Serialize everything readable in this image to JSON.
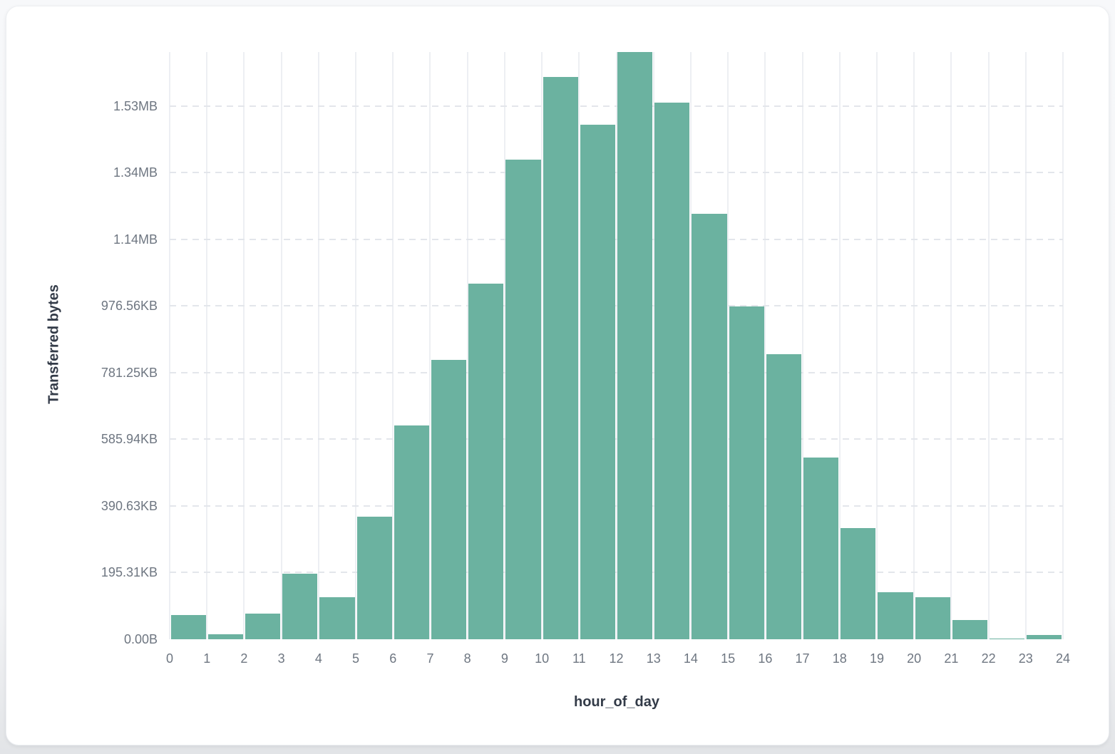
{
  "chart_data": {
    "type": "bar",
    "title": "",
    "xlabel": "hour_of_day",
    "ylabel": "Transferred bytes",
    "x_bin_start_hours": [
      0,
      1,
      2,
      3,
      4,
      5,
      6,
      7,
      8,
      9,
      10,
      11,
      12,
      13,
      14,
      15,
      16,
      17,
      18,
      19,
      20,
      21,
      22,
      23
    ],
    "values_bytes": [
      72000,
      15000,
      77000,
      196000,
      126000,
      367000,
      641000,
      838000,
      1066000,
      1440000,
      1688000,
      1543000,
      1762000,
      1611000,
      1276000,
      998000,
      855000,
      545000,
      333000,
      141000,
      126000,
      58000,
      3000,
      13000
    ],
    "x_tick_labels": [
      "0",
      "1",
      "2",
      "3",
      "4",
      "5",
      "6",
      "7",
      "8",
      "9",
      "10",
      "11",
      "12",
      "13",
      "14",
      "15",
      "16",
      "17",
      "18",
      "19",
      "20",
      "21",
      "22",
      "23",
      "24"
    ],
    "y_ticks": [
      {
        "label": "0.00B",
        "bytes": 0
      },
      {
        "label": "195.31KB",
        "bytes": 200000
      },
      {
        "label": "390.63KB",
        "bytes": 400000
      },
      {
        "label": "585.94KB",
        "bytes": 600000
      },
      {
        "label": "781.25KB",
        "bytes": 800000
      },
      {
        "label": "976.56KB",
        "bytes": 1000000
      },
      {
        "label": "1.14MB",
        "bytes": 1200000
      },
      {
        "label": "1.34MB",
        "bytes": 1400000
      },
      {
        "label": "1.53MB",
        "bytes": 1600000
      }
    ],
    "ylim_bytes": [
      0,
      1762000
    ],
    "grid": true,
    "legend_position": "none",
    "bar_color": "#6bb2a0",
    "tick_label_color": "#6e7681",
    "axis_title_color": "#333b48",
    "card_background": "#ffffff",
    "page_background": "#f3f4f6"
  }
}
